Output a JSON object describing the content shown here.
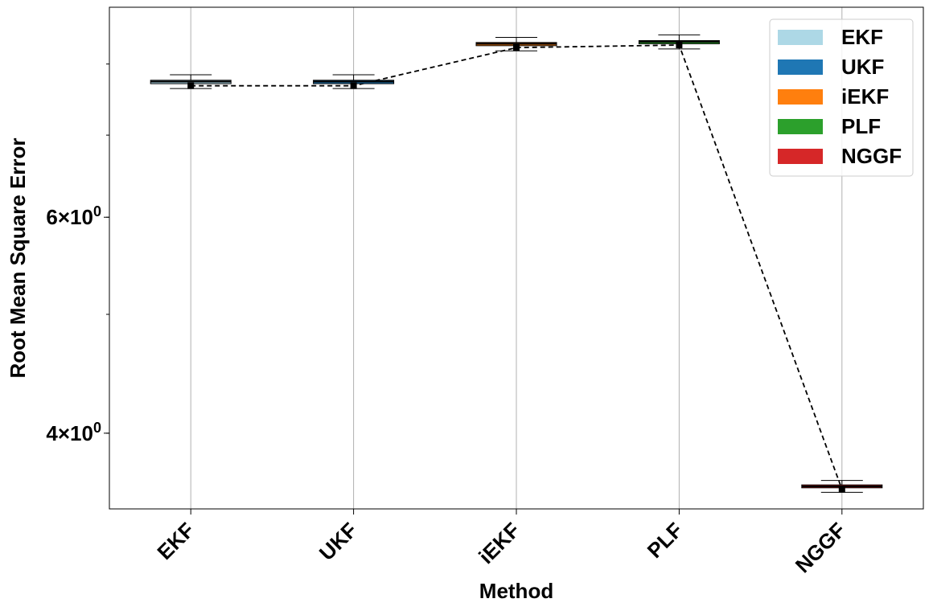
{
  "chart_data": {
    "type": "box",
    "xlabel": "Method",
    "ylabel": "Root Mean Square Error",
    "yscale": "log",
    "ylim": [
      3.47,
      8.9
    ],
    "yticks": [
      {
        "value": 4,
        "base": "4",
        "exp": "0"
      },
      {
        "value": 6,
        "base": "6",
        "exp": "0"
      }
    ],
    "minor_yticks": [
      3,
      4,
      5,
      6,
      7,
      8
    ],
    "grid": "x-only",
    "categories": [
      "EKF",
      "UKF",
      "iEKF",
      "PLF",
      "NGGF"
    ],
    "colors": [
      "#add8e6",
      "#1f77b4",
      "#ff7f0e",
      "#2ca02c",
      "#d62728"
    ],
    "boxes": [
      {
        "name": "EKF",
        "whislo": 7.64,
        "q1": 7.71,
        "med": 7.74,
        "q3": 7.76,
        "whishi": 7.84,
        "mean": 7.68
      },
      {
        "name": "UKF",
        "whislo": 7.64,
        "q1": 7.71,
        "med": 7.74,
        "q3": 7.76,
        "whishi": 7.84,
        "mean": 7.68
      },
      {
        "name": "iEKF",
        "whislo": 8.2,
        "q1": 8.28,
        "med": 8.31,
        "q3": 8.33,
        "whishi": 8.41,
        "mean": 8.25
      },
      {
        "name": "PLF",
        "whislo": 8.23,
        "q1": 8.31,
        "med": 8.34,
        "q3": 8.36,
        "whishi": 8.45,
        "mean": 8.29
      },
      {
        "name": "NGGF",
        "whislo": 3.58,
        "q1": 3.61,
        "med": 3.62,
        "q3": 3.63,
        "whishi": 3.66,
        "mean": 3.6
      }
    ],
    "mean_line": {
      "style": "dashed",
      "color": "#000000"
    },
    "legend": {
      "location": "top-right",
      "entries": [
        {
          "label": "EKF",
          "color": "#add8e6"
        },
        {
          "label": "UKF",
          "color": "#1f77b4"
        },
        {
          "label": "iEKF",
          "color": "#ff7f0e"
        },
        {
          "label": "PLF",
          "color": "#2ca02c"
        },
        {
          "label": "NGGF",
          "color": "#d62728"
        }
      ]
    }
  }
}
